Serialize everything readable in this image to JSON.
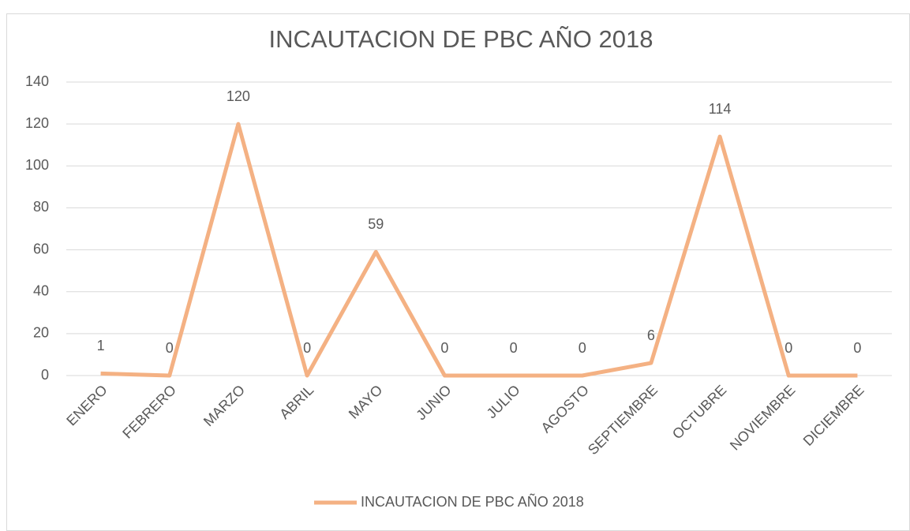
{
  "chart_data": {
    "type": "line",
    "title": "INCAUTACION DE PBC AÑO 2018",
    "categories": [
      "ENERO",
      "FEBRERO",
      "MARZO",
      "ABRIL",
      "MAYO",
      "JUNIO",
      "JULIO",
      "AGOSTO",
      "SEPTIEMBRE",
      "OCTUBRE",
      "NOVIEMBRE",
      "DICIEMBRE"
    ],
    "series": [
      {
        "name": "INCAUTACION DE PBC AÑO 2018",
        "color": "#f4b183",
        "values": [
          1,
          0,
          120,
          0,
          59,
          0,
          0,
          0,
          6,
          114,
          0,
          0
        ]
      }
    ],
    "ylim": [
      0,
      140
    ],
    "yticks": [
      0,
      20,
      40,
      60,
      80,
      100,
      120,
      140
    ],
    "grid": true,
    "legend": "bottom"
  }
}
